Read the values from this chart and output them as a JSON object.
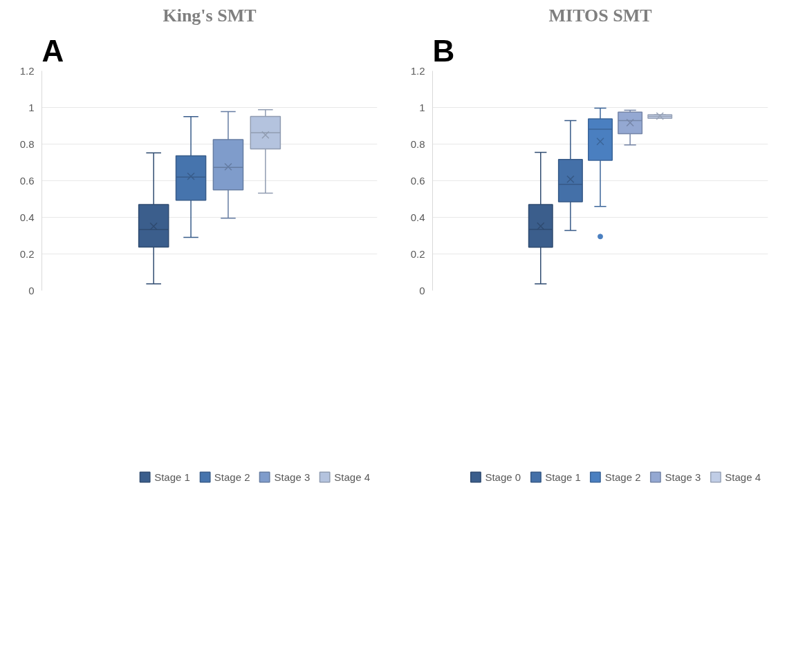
{
  "chart_data": [
    {
      "type": "box",
      "title": "King's SMT",
      "annotations": [
        "A"
      ],
      "categories": [
        null
      ],
      "ylim": [
        0,
        1.2
      ],
      "yticks": [
        0,
        0.2,
        0.4,
        0.6,
        0.8,
        1,
        1.2
      ],
      "grid": "y",
      "legend": "bottom",
      "series": [
        {
          "name": "Stage 1",
          "color": "#3b5e8c",
          "boxes": [
            {
              "low": 0.037,
              "q1": 0.238,
              "median": 0.333,
              "q3": 0.47,
              "high": 0.752,
              "mean": 0.351
            }
          ]
        },
        {
          "name": "Stage 2",
          "color": "#4674ad",
          "boxes": [
            {
              "low": 0.291,
              "q1": 0.493,
              "median": 0.62,
              "q3": 0.736,
              "high": 0.95,
              "mean": 0.624
            }
          ]
        },
        {
          "name": "Stage 3",
          "color": "#7f9ccb",
          "boxes": [
            {
              "low": 0.395,
              "q1": 0.55,
              "median": 0.673,
              "q3": 0.825,
              "high": 0.977,
              "mean": 0.676
            }
          ]
        },
        {
          "name": "Stage 4",
          "color": "#b4c3de",
          "boxes": [
            {
              "low": 0.532,
              "q1": 0.774,
              "median": 0.862,
              "q3": 0.951,
              "high": 0.988,
              "mean": 0.85
            }
          ]
        }
      ]
    },
    {
      "type": "box",
      "title": "MITOS SMT",
      "annotations": [
        "B"
      ],
      "categories": [
        null
      ],
      "ylim": [
        0,
        1.2
      ],
      "yticks": [
        0,
        0.2,
        0.4,
        0.6,
        0.8,
        1,
        1.2
      ],
      "grid": "y",
      "legend": "bottom",
      "series": [
        {
          "name": "Stage 0",
          "color": "#3b5e8c",
          "boxes": [
            {
              "low": 0.037,
              "q1": 0.237,
              "median": 0.334,
              "q3": 0.47,
              "high": 0.755,
              "mean": 0.352
            }
          ]
        },
        {
          "name": "Stage 1",
          "color": "#4470a8",
          "boxes": [
            {
              "low": 0.328,
              "q1": 0.485,
              "median": 0.58,
              "q3": 0.716,
              "high": 0.928,
              "mean": 0.608
            }
          ]
        },
        {
          "name": "Stage 2",
          "color": "#4a7fc0",
          "boxes": [
            {
              "low": 0.459,
              "q1": 0.711,
              "median": 0.881,
              "q3": 0.938,
              "high": 0.996,
              "mean": 0.814,
              "outliers": [
                0.295
              ]
            }
          ]
        },
        {
          "name": "Stage 3",
          "color": "#94a8d2",
          "boxes": [
            {
              "low": 0.795,
              "q1": 0.857,
              "median": 0.928,
              "q3": 0.975,
              "high": 0.985,
              "mean": 0.917
            }
          ]
        },
        {
          "name": "Stage 4",
          "color": "#c0cde6",
          "boxes": [
            {
              "low": 0.941,
              "q1": 0.941,
              "median": 0.951,
              "q3": 0.96,
              "high": 0.96,
              "mean": 0.953
            }
          ]
        }
      ]
    }
  ]
}
